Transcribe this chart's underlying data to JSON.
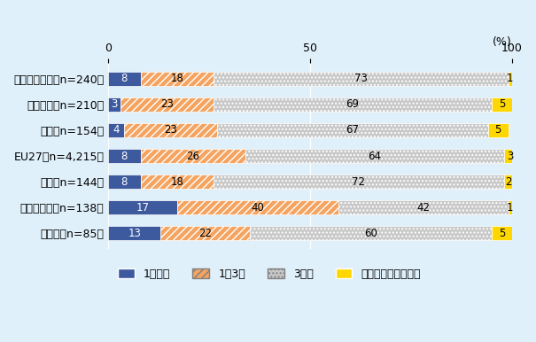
{
  "categories": [
    "スウェーデン（n=240）",
    "フランス（n=210）",
    "英国（n=154）",
    "EU27（n=4,215）",
    "米国（n=144）",
    "ルーマニア（n=138）",
    "トルコ（n=85）"
  ],
  "series": {
    "1年未満": [
      8,
      3,
      4,
      8,
      8,
      17,
      13
    ],
    "1〜3年": [
      18,
      23,
      23,
      26,
      18,
      40,
      22
    ],
    "3年超": [
      73,
      69,
      67,
      64,
      72,
      42,
      60
    ],
    "わからない／未回答": [
      1,
      5,
      5,
      3,
      2,
      1,
      5
    ]
  },
  "colors": {
    "1年未満": "#3D5A9F",
    "1〜3年": "#F4A460",
    "3年超": "#C8C8C8",
    "わからない／未回答": "#FFD700"
  },
  "hatches": {
    "1年未満": "",
    "1〜3年": "////",
    "3年超": "....",
    "わからない／未回答": ""
  },
  "legend_labels": [
    "1年未満",
    "1〜3年",
    "3年超",
    "わからない／未回答"
  ],
  "title_unit": "(%)",
  "xlim": [
    0,
    100
  ],
  "xticks": [
    0,
    50,
    100
  ],
  "background_color": "#E0F0FA",
  "bar_height": 0.55,
  "label_fontsize": 8.5,
  "tick_fontsize": 9,
  "legend_fontsize": 9
}
